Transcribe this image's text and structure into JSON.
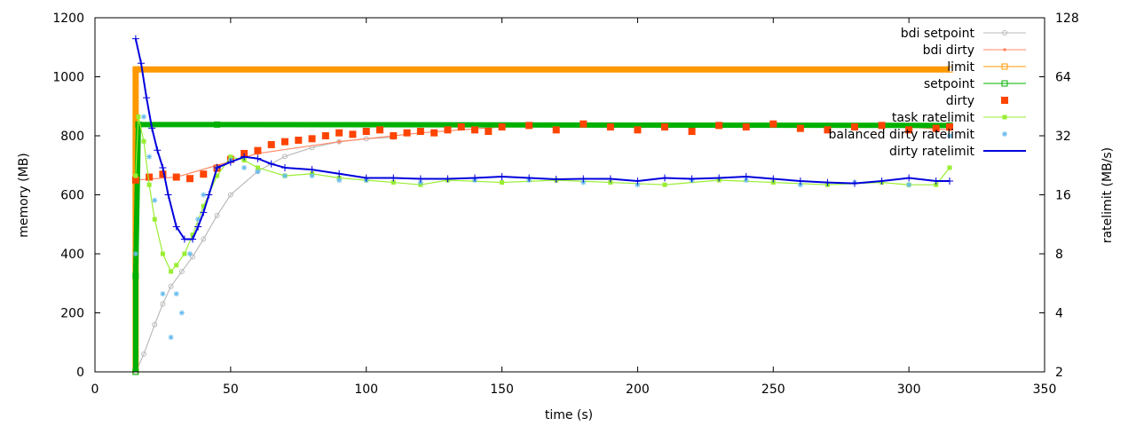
{
  "chart_data": {
    "type": "line",
    "xlabel": "time (s)",
    "ylabel": "memory (MB)",
    "y2label": "ratelimit (MB/s)",
    "xlim": [
      0,
      350
    ],
    "ylim": [
      0,
      1200
    ],
    "y2lim": [
      2,
      128
    ],
    "y2scale": "log2",
    "x_ticks": [
      "0",
      "50",
      "100",
      "150",
      "200",
      "250",
      "300",
      "350"
    ],
    "y_ticks": [
      "0",
      "200",
      "400",
      "600",
      "800",
      "1000",
      "1200"
    ],
    "y2_ticks": [
      "2",
      "4",
      "8",
      "16",
      "32",
      "64",
      "128"
    ],
    "grid": false,
    "legend_position": "top-right",
    "series": [
      {
        "name": "bdi setpoint",
        "axis": "y1",
        "color": "#bbbbbb",
        "style": "line-circle",
        "x": [
          15,
          18,
          22,
          25,
          28,
          32,
          36,
          40,
          45,
          50,
          60,
          70,
          80,
          90,
          100,
          110
        ],
        "y": [
          0,
          60,
          160,
          230,
          290,
          340,
          390,
          450,
          530,
          600,
          680,
          730,
          760,
          780,
          790,
          795
        ]
      },
      {
        "name": "bdi dirty",
        "axis": "y1",
        "color": "#ff8866",
        "style": "line-dot",
        "x": [
          15,
          30,
          45,
          60,
          90,
          120,
          150,
          180,
          210,
          240,
          270,
          300,
          315
        ],
        "y": [
          650,
          660,
          700,
          740,
          780,
          810,
          830,
          840,
          830,
          840,
          840,
          830,
          820
        ]
      },
      {
        "name": "limit",
        "axis": "y1",
        "color": "#ff9900",
        "style": "line-open-square",
        "x": [
          15,
          15,
          315
        ],
        "y": [
          0,
          1025,
          1025
        ]
      },
      {
        "name": "setpoint",
        "axis": "y1",
        "color": "#00b000",
        "style": "line-open-square",
        "x": [
          15,
          15,
          16,
          45,
          315
        ],
        "y": [
          0,
          325,
          838,
          838,
          835
        ]
      },
      {
        "name": "dirty",
        "axis": "y1",
        "color": "#ff4400",
        "style": "filled-square",
        "x": [
          15,
          20,
          25,
          30,
          35,
          40,
          45,
          50,
          55,
          60,
          65,
          70,
          75,
          80,
          85,
          90,
          95,
          100,
          105,
          110,
          115,
          120,
          125,
          130,
          135,
          140,
          145,
          150,
          160,
          170,
          180,
          190,
          200,
          210,
          220,
          230,
          240,
          250,
          260,
          270,
          280,
          290,
          300,
          310,
          315
        ],
        "y": [
          650,
          660,
          670,
          660,
          655,
          670,
          690,
          720,
          740,
          750,
          770,
          780,
          785,
          790,
          800,
          810,
          805,
          815,
          820,
          800,
          810,
          815,
          810,
          820,
          830,
          820,
          815,
          830,
          835,
          820,
          840,
          830,
          820,
          830,
          815,
          835,
          830,
          840,
          825,
          820,
          830,
          835,
          820,
          825,
          830
        ]
      },
      {
        "name": "task ratelimit",
        "axis": "y2",
        "color": "#99ee33",
        "style": "line-filled-square",
        "x": [
          15,
          16,
          18,
          20,
          22,
          25,
          28,
          30,
          33,
          36,
          40,
          45,
          50,
          55,
          60,
          70,
          80,
          90,
          100,
          110,
          120,
          130,
          150,
          170,
          190,
          210,
          230,
          250,
          270,
          290,
          300,
          310,
          315
        ],
        "y": [
          20,
          40,
          30,
          18,
          12,
          8,
          6.5,
          7,
          8,
          10,
          14,
          20,
          25,
          24,
          22,
          20,
          20.5,
          19.5,
          19,
          18.5,
          18,
          19,
          18.5,
          19,
          18.5,
          18,
          19,
          18.5,
          18,
          18.5,
          18,
          18,
          22
        ]
      },
      {
        "name": "balanced dirty ratelimit",
        "axis": "y2",
        "color": "#66bbee",
        "style": "star",
        "x": [
          15,
          18,
          20,
          22,
          25,
          28,
          30,
          32,
          35,
          38,
          40,
          45,
          50,
          55,
          60,
          70,
          80,
          90,
          100,
          120,
          140,
          160,
          180,
          200,
          220,
          240,
          260,
          280,
          300,
          315
        ],
        "y": [
          8,
          40,
          25,
          15,
          5,
          3,
          5,
          4,
          8,
          12,
          16,
          22,
          24,
          22,
          21,
          20,
          20,
          19,
          19,
          18.5,
          19,
          19,
          18.5,
          18,
          19,
          19,
          18,
          18.5,
          18,
          32
        ]
      },
      {
        "name": "dirty ratelimit",
        "axis": "y2",
        "color": "#0000dd",
        "style": "line-plus",
        "x": [
          15,
          17,
          19,
          21,
          23,
          25,
          27,
          30,
          33,
          36,
          38,
          40,
          42,
          45,
          50,
          55,
          60,
          65,
          70,
          80,
          90,
          100,
          110,
          120,
          130,
          140,
          150,
          160,
          170,
          180,
          190,
          200,
          210,
          220,
          230,
          240,
          250,
          260,
          270,
          280,
          290,
          300,
          310,
          315
        ],
        "y": [
          100,
          75,
          50,
          35,
          27,
          22,
          16,
          11,
          9.5,
          9.5,
          11,
          13,
          16,
          22,
          23.5,
          25,
          24.5,
          23,
          22,
          21.5,
          20.5,
          19.5,
          19.5,
          19.3,
          19.3,
          19.5,
          19.8,
          19.5,
          19.2,
          19.3,
          19.3,
          18.8,
          19.5,
          19.3,
          19.5,
          19.8,
          19.3,
          18.8,
          18.5,
          18.3,
          18.8,
          19.5,
          18.8,
          18.8
        ]
      }
    ]
  }
}
